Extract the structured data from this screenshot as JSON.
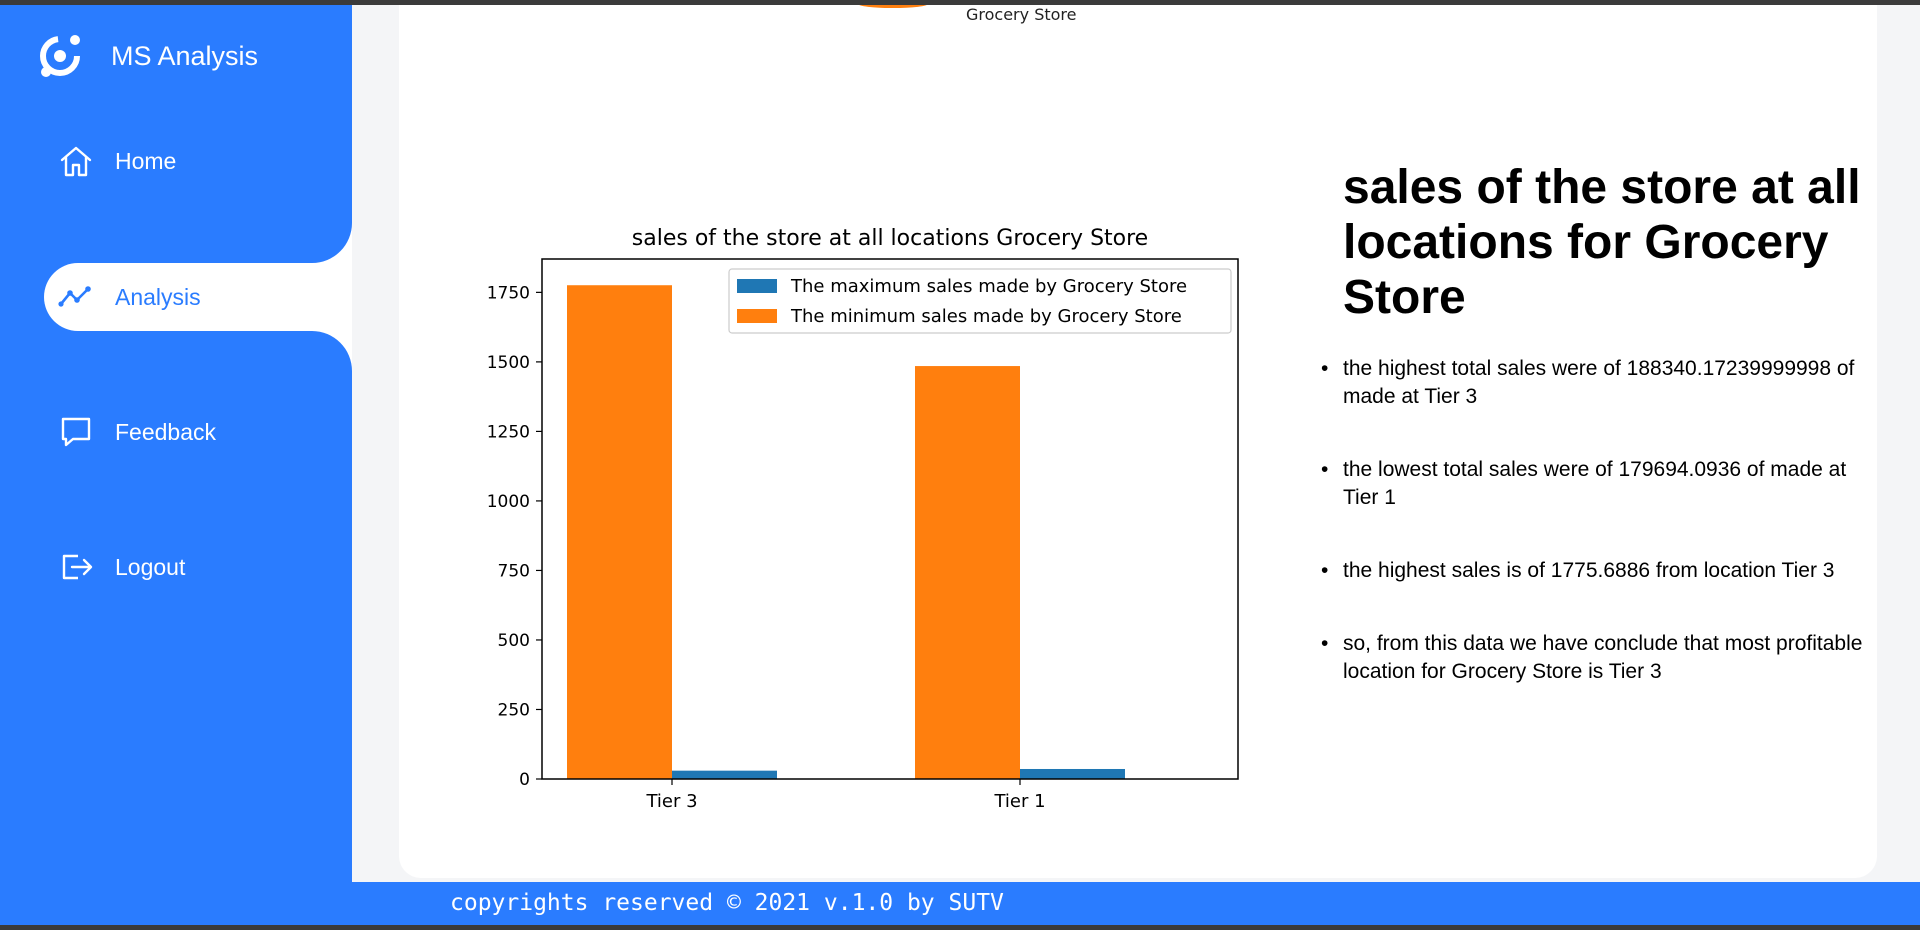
{
  "app": {
    "name": "MS Analysis"
  },
  "nav": [
    {
      "label": "Home",
      "icon": "home-icon"
    },
    {
      "label": "Analysis",
      "icon": "line-chart-icon",
      "active": true
    },
    {
      "label": "Feedback",
      "icon": "chat-icon"
    },
    {
      "label": "Logout",
      "icon": "logout-icon"
    }
  ],
  "top_caption": "Grocery Store",
  "chart_data": {
    "type": "bar",
    "title": "sales of the store at all locations Grocery Store",
    "categories": [
      "Tier 3",
      "Tier 1"
    ],
    "series": [
      {
        "name": "The maximum sales made by Grocery Store",
        "values": [
          30,
          36
        ],
        "color": "#1f77b4"
      },
      {
        "name": "The minimum sales made by Grocery Store",
        "values": [
          1775.6886,
          1485
        ],
        "color": "#ff7f0e"
      }
    ],
    "ylim": [
      0,
      1870
    ],
    "yticks": [
      0,
      250,
      500,
      750,
      1000,
      1250,
      1500,
      1750
    ],
    "legend": "top-right",
    "grid": false
  },
  "info": {
    "title": "sales of the store at all locations for Grocery Store",
    "bullets": [
      "the highest total sales were of 188340.17239999998 of made at Tier 3",
      "the lowest total sales were of 179694.0936 of made at Tier 1",
      "the highest sales is of 1775.6886 from location Tier 3",
      "so, from this data we have conclude that most profitable location for Grocery Store is Tier 3"
    ]
  },
  "footer": {
    "text": "copyrights reserved © 2021 v.1.0 by SUTV"
  },
  "colors": {
    "accent": "#2a7cff",
    "orange": "#ff7f0e",
    "blue": "#1f77b4"
  }
}
